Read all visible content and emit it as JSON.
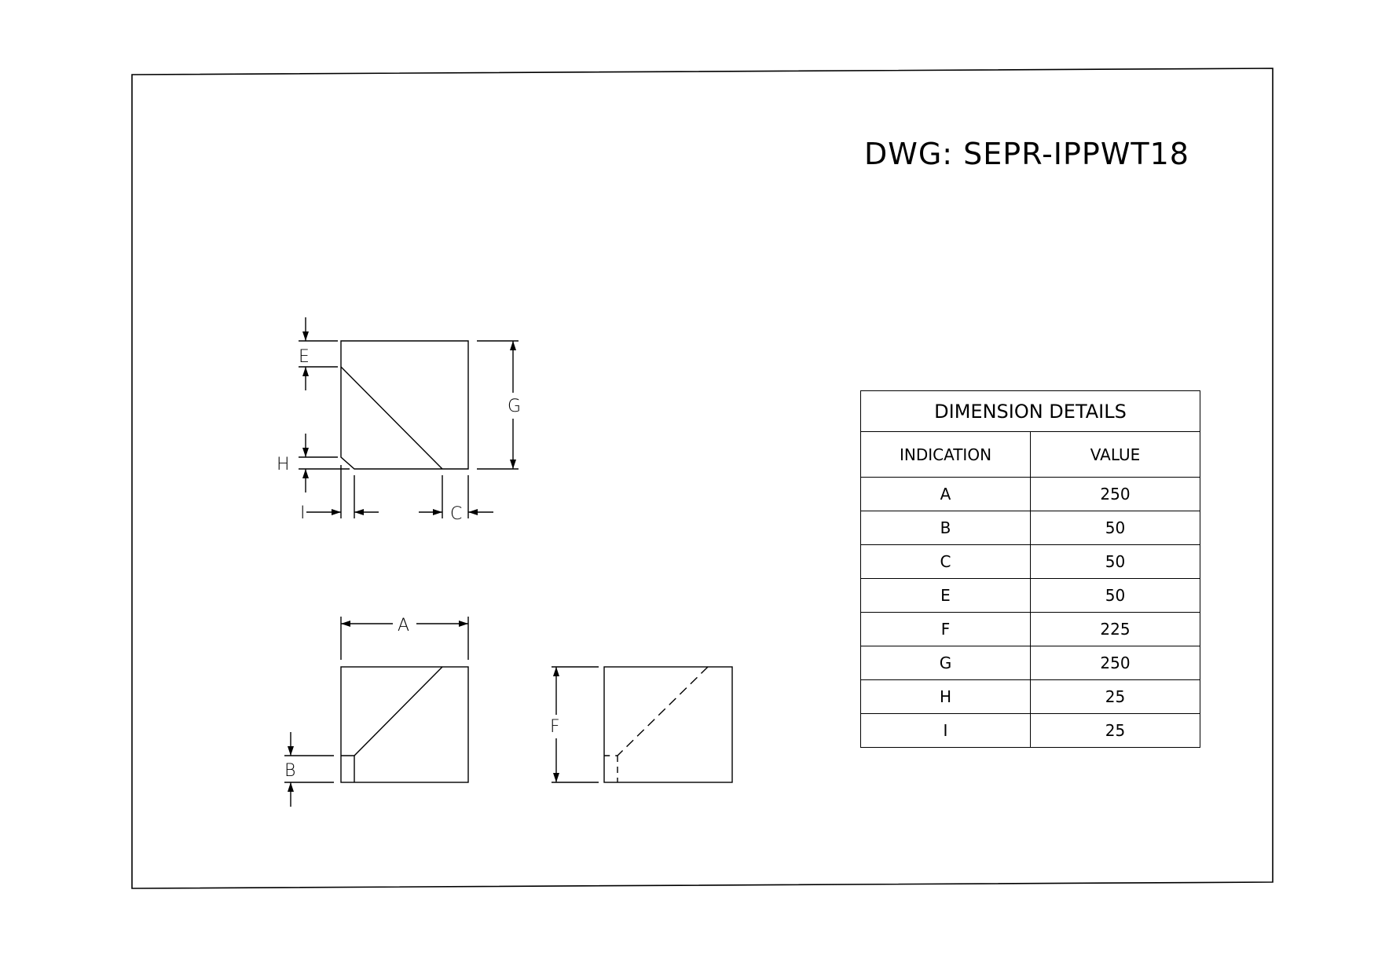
{
  "drawing": {
    "title": "DWG: SEPR-IPPWT18"
  },
  "labels": {
    "E": "E",
    "G": "G",
    "H": "H",
    "I": "I",
    "C": "C",
    "A": "A",
    "B": "B",
    "F": "F"
  },
  "table": {
    "title": "DIMENSION DETAILS",
    "headers": [
      "INDICATION",
      "VALUE"
    ],
    "rows": [
      {
        "indication": "A",
        "value": "250"
      },
      {
        "indication": "B",
        "value": "50"
      },
      {
        "indication": "C",
        "value": "50"
      },
      {
        "indication": "E",
        "value": "50"
      },
      {
        "indication": "F",
        "value": "225"
      },
      {
        "indication": "G",
        "value": "250"
      },
      {
        "indication": "H",
        "value": "25"
      },
      {
        "indication": "I",
        "value": "25"
      }
    ]
  }
}
